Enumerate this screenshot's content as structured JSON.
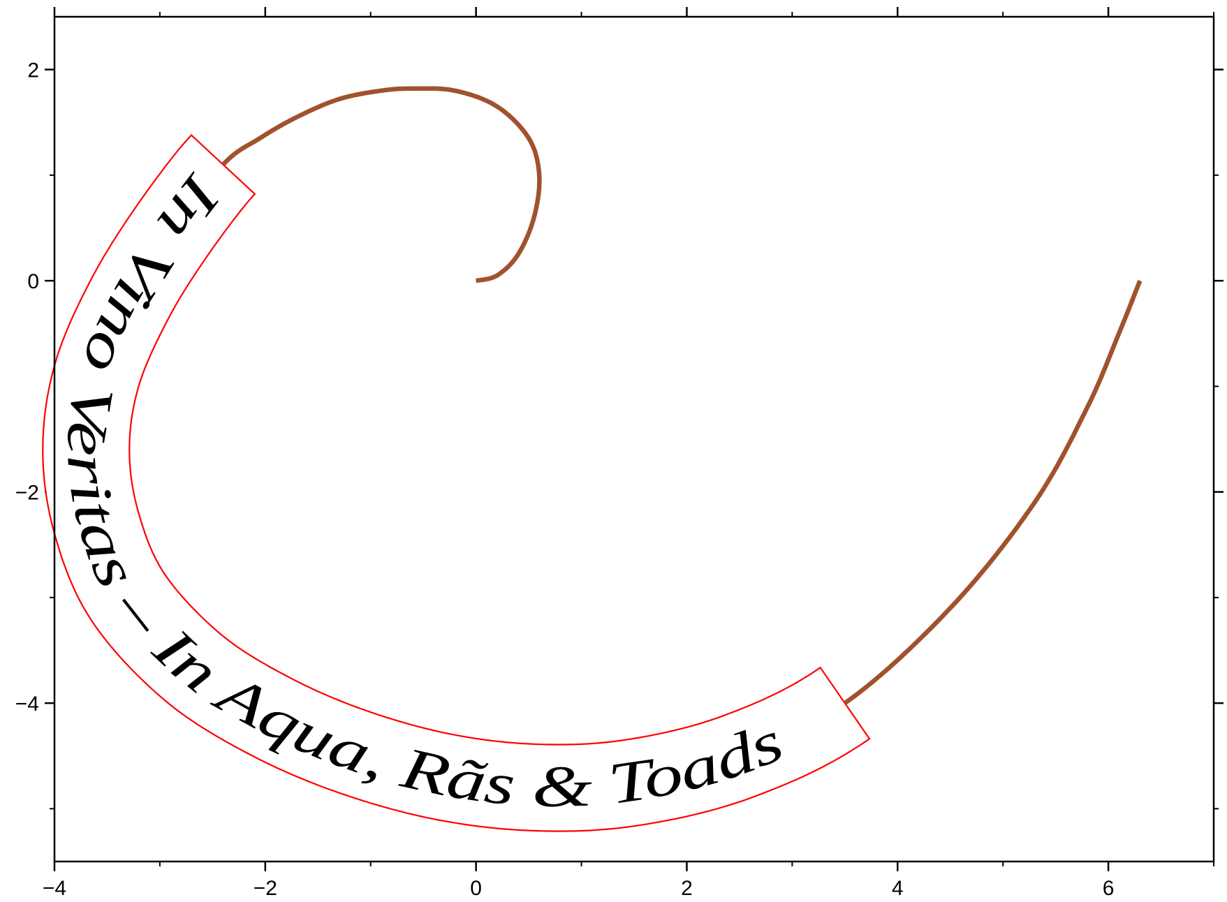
{
  "chart_data": {
    "type": "line",
    "title": "",
    "xlabel": "",
    "ylabel": "",
    "xlim": [
      -4,
      7
    ],
    "ylim": [
      -5.5,
      2.5
    ],
    "x_ticks": [
      -4,
      -2,
      0,
      2,
      4,
      6
    ],
    "x_tick_labels": [
      "−4",
      "−2",
      "0",
      "2",
      "4",
      "6"
    ],
    "y_ticks": [
      -4,
      -2,
      0,
      2
    ],
    "y_tick_labels": [
      "−4",
      "−2",
      "0",
      "2"
    ],
    "x_minor_ticks": [
      -3,
      -1,
      1,
      3,
      5,
      7
    ],
    "y_minor_ticks": [
      -5,
      -3,
      -1,
      1
    ],
    "grid": false,
    "frame": "box",
    "series": [
      {
        "color": "#a0522d",
        "x": [
          0.0,
          0.2,
          0.4,
          0.55,
          0.6,
          0.5,
          0.2,
          -0.2,
          -0.6,
          -0.9,
          -1.3,
          -1.7,
          -2.05,
          -2.4,
          -2.9,
          -3.3,
          -3.6,
          -3.7,
          -3.6,
          -3.3,
          -2.7,
          -2.0,
          -1.2,
          -0.3,
          0.6,
          1.5,
          2.5,
          3.5,
          4.5,
          5.3,
          5.8,
          6.1,
          6.3
        ],
        "y": [
          0.0,
          0.05,
          0.25,
          0.6,
          1.0,
          1.35,
          1.65,
          1.8,
          1.82,
          1.8,
          1.72,
          1.55,
          1.35,
          1.1,
          0.45,
          -0.2,
          -0.9,
          -1.6,
          -2.3,
          -3.0,
          -3.65,
          -4.1,
          -4.45,
          -4.7,
          -4.8,
          -4.75,
          -4.5,
          -4.0,
          -3.1,
          -2.1,
          -1.2,
          -0.5,
          0.0
        ]
      }
    ],
    "annotation": {
      "text": "In Vino Veritas  – In Aqua, Rãs & Toads",
      "box_color": "#ff0000"
    }
  }
}
